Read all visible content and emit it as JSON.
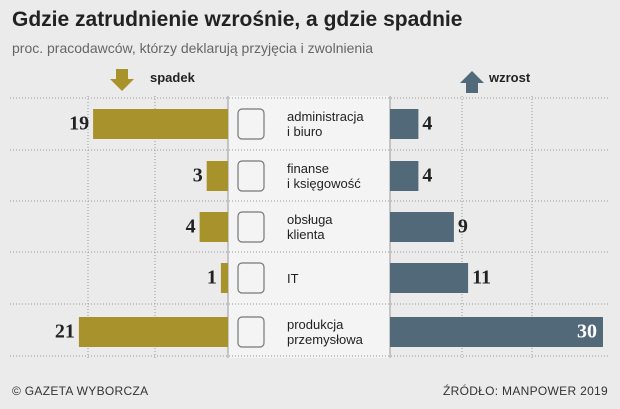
{
  "chart_data": {
    "type": "bar",
    "title": "Gdzie zatrudnienie wzrośnie, a gdzie spadnie",
    "subtitle": "proc. pracodawców, którzy deklarują przyjęcia i zwolnienia",
    "categories": [
      "administracja\ni biuro",
      "finanse\ni księgowość",
      "obsługa\nklienta",
      "IT",
      "produkcja\nprzemysłowa"
    ],
    "series": [
      {
        "name": "spadek",
        "color": "#a8922b",
        "values": [
          19,
          3,
          4,
          1,
          21
        ]
      },
      {
        "name": "wzrost",
        "color": "#52697a",
        "values": [
          4,
          4,
          9,
          11,
          30
        ]
      }
    ],
    "credit": "© GAZETA WYBORCZA",
    "source": "ŹRÓDŁO: MANPOWER 2019"
  }
}
